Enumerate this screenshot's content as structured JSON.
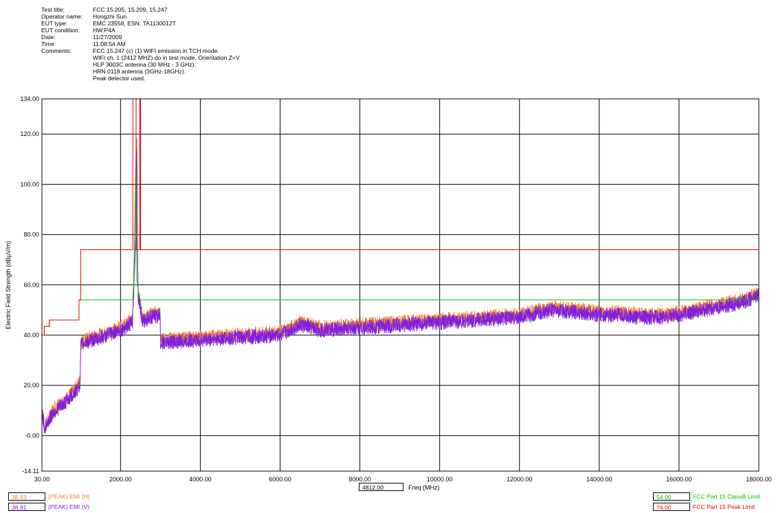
{
  "header": {
    "fields": [
      {
        "label": "Test title:",
        "value": "FCC 15.205, 15.209, 15.247"
      },
      {
        "label": "Operator name:",
        "value": "Hongzhi Sun"
      },
      {
        "label": "EUT type:",
        "value": "EMC 23558, ESN:  TA1130012T"
      },
      {
        "label": "EUT condition:",
        "value": "HW:P4A"
      },
      {
        "label": "Date:",
        "value": "11/27/2009"
      },
      {
        "label": "Time:",
        "value": "11:08:54 AM"
      },
      {
        "label": "Comments:",
        "value": "FCC 15.247 (c) (1) WIFI emission in TCH mode."
      }
    ],
    "comment_lines": [
      "WIFI ch. 1 (2412 MHZ) do in test mode. Orientation Z=V",
      "HLP 3003C antenna (30 MHz - 3 GHz).",
      "HRN 0118   antenna (3GHz-18GHz).",
      "Peak detector used."
    ]
  },
  "marker": {
    "value": "4812.00",
    "label": "Freq (MHz)"
  },
  "legend_left": [
    {
      "value": "38.63",
      "label": "(PEAK) EMI (H)",
      "color": "#f08030"
    },
    {
      "value": "38.81",
      "label": "(PEAK) EMI (V)",
      "color": "#8020e0"
    }
  ],
  "legend_right": [
    {
      "value": "54.00",
      "label": "FCC Part 15 ClassB Limit",
      "color": "#00c000"
    },
    {
      "value": "74.00",
      "label": "FCC Part 15 Peak Limit",
      "color": "#e00000"
    }
  ],
  "chart_data": {
    "type": "line",
    "title": "",
    "xlabel": "Freq (MHz)",
    "ylabel": "Electric Field Strength (dBµV/m)",
    "xlim": [
      30,
      18000
    ],
    "ylim": [
      -14.11,
      134
    ],
    "grid": true,
    "x_ticks": [
      30,
      2000,
      4000,
      6000,
      8000,
      10000,
      12000,
      14000,
      16000,
      18000
    ],
    "x_tick_labels": [
      "30.00",
      "2000.00",
      "4000.00",
      "6000.00",
      "8000.00",
      "10000.00",
      "12000.00",
      "14000.00",
      "16000.00",
      "18000.00"
    ],
    "y_ticks": [
      -14.11,
      0,
      20,
      40,
      60,
      80,
      100,
      120,
      134
    ],
    "y_tick_labels": [
      "-14.11",
      "-0.00",
      "20.00",
      "40.00",
      "60.00",
      "80.00",
      "100.00",
      "120.00",
      "134.00"
    ],
    "series": [
      {
        "name": "FCC Part 15 Peak Limit",
        "color": "#e00000",
        "style": "step",
        "x": [
          30,
          88,
          88,
          216,
          216,
          960,
          960,
          1000,
          1000,
          2310,
          2310,
          2390,
          2390,
          2483.5,
          2483.5,
          2500,
          2500,
          18000
        ],
        "y": [
          40,
          40,
          43.5,
          43.5,
          46,
          46,
          54,
          54,
          74,
          74,
          134,
          134,
          74,
          74,
          134,
          134,
          74,
          74
        ]
      },
      {
        "name": "FCC Part 15 ClassB Limit",
        "color": "#00c000",
        "style": "step",
        "x": [
          30,
          88,
          88,
          216,
          216,
          960,
          960,
          1000,
          1000,
          2310,
          2330,
          2390,
          2410,
          2483.5,
          2500,
          18000
        ],
        "y": [
          40,
          40,
          43.5,
          43.5,
          46,
          46,
          54,
          54,
          54,
          54,
          62,
          114,
          62,
          54,
          54,
          54
        ]
      },
      {
        "name": "(PEAK) EMI (H)",
        "color": "#f08030",
        "style": "noisy",
        "x": [
          30,
          60,
          100,
          300,
          600,
          900,
          990,
          1000,
          1100,
          1500,
          2000,
          2300,
          2380,
          2400,
          2412,
          2425,
          2440,
          2480,
          2550,
          2700,
          3000,
          3000,
          4000,
          5000,
          6000,
          6500,
          7000,
          8000,
          9000,
          10000,
          11000,
          12000,
          12800,
          13500,
          14000,
          14500,
          15000,
          15500,
          16000,
          17000,
          17600,
          18000
        ],
        "y": [
          10,
          8,
          3,
          10,
          14,
          19,
          22,
          37,
          38,
          40,
          43,
          46,
          80,
          118,
          114,
          80,
          57,
          54,
          46,
          48,
          49,
          38,
          39,
          40,
          41,
          45,
          43,
          44,
          45,
          46,
          47,
          48,
          51,
          50,
          49,
          49,
          48,
          48,
          49,
          52,
          54,
          57
        ],
        "noise": 3
      },
      {
        "name": "(PEAK) EMI (V)",
        "color": "#8020e0",
        "style": "noisy",
        "x": [
          30,
          60,
          100,
          300,
          600,
          900,
          990,
          1000,
          1100,
          1500,
          2000,
          2300,
          2380,
          2400,
          2412,
          2425,
          2440,
          2480,
          2550,
          2700,
          3000,
          3000,
          4000,
          5000,
          6000,
          6500,
          7000,
          8000,
          9000,
          10000,
          11000,
          12000,
          12800,
          13500,
          14000,
          14500,
          15000,
          15500,
          16000,
          17000,
          17600,
          18000
        ],
        "y": [
          9,
          7,
          3,
          9,
          13,
          18,
          21,
          36,
          37,
          39,
          42,
          45,
          78,
          117,
          112,
          78,
          56,
          53,
          45,
          47,
          48,
          37,
          38,
          39,
          40,
          44,
          42,
          43,
          44,
          45,
          46,
          47,
          50,
          49,
          48,
          48,
          47,
          47,
          48,
          51,
          53,
          56
        ],
        "noise": 3
      }
    ]
  }
}
